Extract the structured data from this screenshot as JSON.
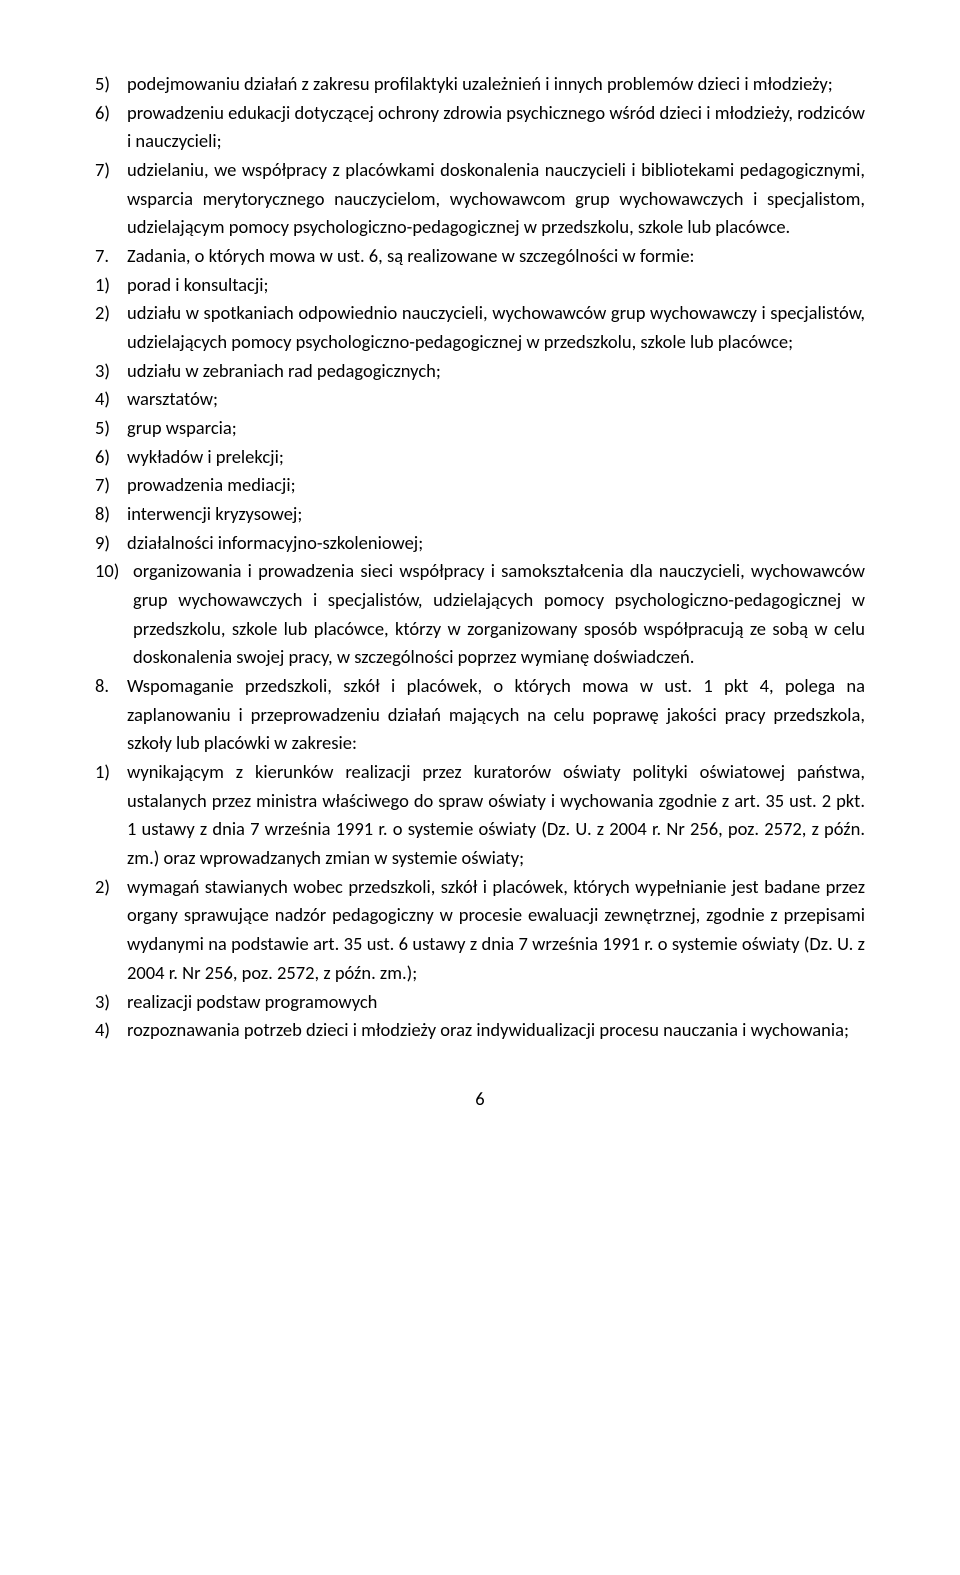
{
  "items": {
    "i5": {
      "marker": "5)",
      "text": "podejmowaniu działań z zakresu profilaktyki uzależnień i innych problemów dzieci i młodzieży;"
    },
    "i6": {
      "marker": "6)",
      "text": "prowadzeniu edukacji dotyczącej ochrony zdrowia psychicznego wśród dzieci i młodzieży, rodziców i nauczycieli;"
    },
    "i7": {
      "marker": "7)",
      "text": "udzielaniu, we współpracy z placówkami doskonalenia nauczycieli i bibliotekami pedagogicznymi, wsparcia merytorycznego nauczycielom, wychowawcom grup wychowawczych i specjalistom, udzielającym pomocy psychologiczno-pedagogicznej w przedszkolu, szkole lub placówce."
    },
    "z7": {
      "marker": "7.",
      "text": "Zadania, o których mowa w ust. 6, są realizowane w szczególności w formie:"
    },
    "f1": {
      "marker": "1)",
      "text": "porad i konsultacji;"
    },
    "f2": {
      "marker": "2)",
      "text": "udziału w spotkaniach odpowiednio nauczycieli, wychowawców grup wychowawczy i specjalistów, udzielających pomocy psychologiczno-pedagogicznej w przedszkolu, szkole lub placówce;"
    },
    "f3": {
      "marker": "3)",
      "text": "udziału w zebraniach rad pedagogicznych;"
    },
    "f4": {
      "marker": "4)",
      "text": "warsztatów;"
    },
    "f5": {
      "marker": "5)",
      "text": "grup wsparcia;"
    },
    "f6": {
      "marker": "6)",
      "text": "wykładów i prelekcji;"
    },
    "f7": {
      "marker": "7)",
      "text": "prowadzenia mediacji;"
    },
    "f8": {
      "marker": "8)",
      "text": "interwencji kryzysowej;"
    },
    "f9": {
      "marker": "9)",
      "text": "działalności informacyjno-szkoleniowej;"
    },
    "f10": {
      "marker": "10)",
      "text": "organizowania i prowadzenia sieci współpracy i samokształcenia dla nauczycieli, wychowawców grup wychowawczych i specjalistów, udzielających pomocy psychologiczno-pedagogicznej w przedszkolu, szkole lub placówce, którzy w zorganizowany sposób współpracują ze sobą w celu doskonalenia swojej pracy, w szczególności poprzez wymianę doświadczeń."
    },
    "z8": {
      "marker": "8.",
      "text": "Wspomaganie przedszkoli, szkół i placówek, o których mowa w ust. 1 pkt 4, polega na zaplanowaniu i przeprowadzeniu działań mających na celu poprawę jakości pracy przedszkola, szkoły lub placówki w zakresie:"
    },
    "g1": {
      "marker": "1)",
      "text": "wynikającym z kierunków realizacji przez kuratorów oświaty polityki oświatowej państwa, ustalanych przez ministra właściwego do spraw oświaty i wychowania zgodnie z art. 35 ust. 2 pkt. 1 ustawy z dnia 7 września 1991 r. o systemie oświaty (Dz. U. z 2004 r. Nr 256, poz. 2572, z późn. zm.) oraz wprowadzanych zmian w systemie oświaty;"
    },
    "g2": {
      "marker": "2)",
      "text": "wymagań stawianych wobec przedszkoli, szkół i placówek, których wypełnianie jest badane przez organy sprawujące nadzór pedagogiczny w procesie ewaluacji zewnętrznej, zgodnie z przepisami wydanymi na podstawie art. 35 ust. 6 ustawy z dnia 7 września 1991 r. o systemie oświaty (Dz. U. z 2004 r. Nr 256, poz. 2572, z późn. zm.);"
    },
    "g3": {
      "marker": "3)",
      "text": "realizacji podstaw programowych"
    },
    "g4": {
      "marker": "4)",
      "text": "rozpoznawania potrzeb dzieci i młodzieży oraz indywidualizacji procesu nauczania i wychowania;"
    }
  },
  "pageNumber": "6"
}
